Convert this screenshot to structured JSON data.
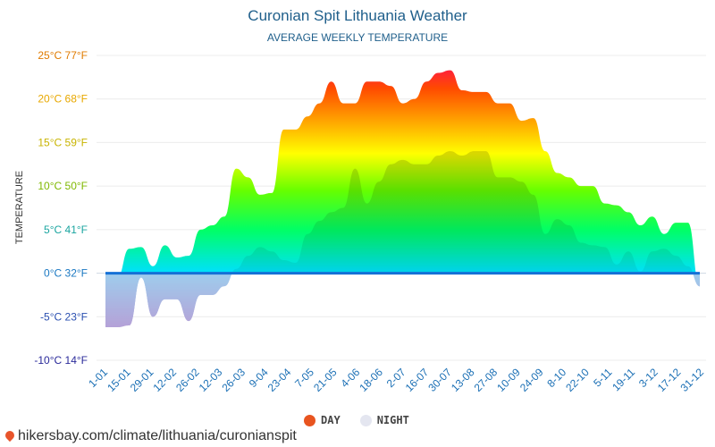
{
  "chart_data": {
    "type": "area",
    "title": "Curonian Spit Lithuania Weather",
    "subtitle": "AVERAGE WEEKLY TEMPERATURE",
    "ylabel": "TEMPERATURE",
    "ylim": [
      -10,
      25
    ],
    "yticks": [
      {
        "value": 25,
        "label": "25°C 77°F",
        "color": "#e07b00"
      },
      {
        "value": 20,
        "label": "20°C 68°F",
        "color": "#e8a800"
      },
      {
        "value": 15,
        "label": "15°C 59°F",
        "color": "#c8b400"
      },
      {
        "value": 10,
        "label": "10°C 50°F",
        "color": "#7fb800"
      },
      {
        "value": 5,
        "label": "5°C 41°F",
        "color": "#1ba5a0"
      },
      {
        "value": 0,
        "label": "0°C 32°F",
        "color": "#1a78c2"
      },
      {
        "value": -5,
        "label": "-5°C 23°F",
        "color": "#2a4fb0"
      },
      {
        "value": -10,
        "label": "-10°C 14°F",
        "color": "#2a2a9a"
      }
    ],
    "xticks": [
      "1-01",
      "15-01",
      "29-01",
      "12-02",
      "26-02",
      "12-03",
      "26-03",
      "9-04",
      "23-04",
      "7-05",
      "21-05",
      "4-06",
      "18-06",
      "2-07",
      "16-07",
      "30-07",
      "13-08",
      "27-08",
      "10-09",
      "24-09",
      "8-10",
      "22-10",
      "5-11",
      "19-11",
      "3-12",
      "17-12",
      "31-12"
    ],
    "series": [
      {
        "name": "DAY",
        "color": "#e8541f",
        "values": [
          -1.2,
          -0.5,
          2.8,
          3.0,
          0.8,
          3.2,
          1.8,
          2.0,
          5.0,
          5.5,
          6.5,
          12.0,
          11.0,
          9.0,
          9.2,
          16.5,
          16.5,
          18.0,
          19.5,
          22.0,
          19.5,
          19.5,
          22.0,
          22.0,
          21.5,
          19.5,
          20.0,
          22.0,
          23.0,
          23.3,
          21.0,
          20.8,
          20.8,
          19.5,
          19.5,
          17.5,
          17.8,
          14.0,
          11.5,
          11.0,
          10.0,
          10.0,
          8.0,
          7.8,
          7.0,
          5.5,
          6.5,
          4.5,
          5.8,
          5.8,
          -1.5
        ]
      },
      {
        "name": "NIGHT",
        "color": "#e8e8f0",
        "values": [
          -6.2,
          -6.2,
          -6.0,
          -0.5,
          -5.0,
          -3.0,
          -3.0,
          -5.5,
          -2.5,
          -2.5,
          -1.5,
          0.5,
          2.0,
          3.0,
          2.5,
          1.5,
          1.2,
          4.5,
          6.0,
          7.0,
          7.5,
          12.0,
          8.0,
          10.5,
          12.5,
          13.0,
          12.5,
          12.5,
          13.5,
          14.0,
          13.5,
          14.0,
          14.0,
          11.0,
          11.0,
          10.5,
          9.0,
          4.5,
          6.2,
          5.5,
          3.5,
          3.2,
          3.0,
          1.0,
          2.5,
          0.2,
          2.5,
          2.8,
          2.0,
          0.8,
          -1.5
        ]
      }
    ]
  },
  "legend": {
    "day_label": "DAY",
    "night_label": "NIGHT",
    "day_color": "#e8541f",
    "night_color": "#e4e6f0"
  },
  "footer": {
    "source": "hikersbay.com/climate/lithuania/curonianspit"
  }
}
